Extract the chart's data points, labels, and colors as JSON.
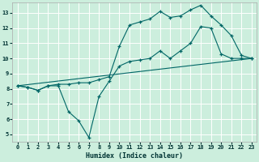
{
  "xlabel": "Humidex (Indice chaleur)",
  "bg_color": "#cceedd",
  "grid_color": "#ffffff",
  "line_color": "#006666",
  "xlim": [
    -0.5,
    23.5
  ],
  "ylim": [
    4.5,
    13.7
  ],
  "xticks": [
    0,
    1,
    2,
    3,
    4,
    5,
    6,
    7,
    8,
    9,
    10,
    11,
    12,
    13,
    14,
    15,
    16,
    17,
    18,
    19,
    20,
    21,
    22,
    23
  ],
  "yticks": [
    5,
    6,
    7,
    8,
    9,
    10,
    11,
    12,
    13
  ],
  "line1_x": [
    0,
    1,
    2,
    3,
    4,
    5,
    6,
    7,
    8,
    9,
    10,
    11,
    12,
    13,
    14,
    15,
    16,
    17,
    18,
    19,
    20,
    21,
    22,
    23
  ],
  "line1_y": [
    8.2,
    8.1,
    7.9,
    8.2,
    8.2,
    6.5,
    5.9,
    4.8,
    7.5,
    8.5,
    9.5,
    9.8,
    9.9,
    10.0,
    10.5,
    10.0,
    10.5,
    11.0,
    12.1,
    12.0,
    10.3,
    10.0,
    10.0,
    10.0
  ],
  "line2_x": [
    0,
    1,
    2,
    3,
    4,
    5,
    6,
    7,
    8,
    9,
    10,
    11,
    12,
    13,
    14,
    15,
    16,
    17,
    18,
    19,
    20,
    21,
    22,
    23
  ],
  "line2_y": [
    8.2,
    8.1,
    7.9,
    8.2,
    8.3,
    8.3,
    8.4,
    8.4,
    8.6,
    8.8,
    10.8,
    12.2,
    12.4,
    12.6,
    13.1,
    12.7,
    12.8,
    13.2,
    13.5,
    12.8,
    12.2,
    11.5,
    10.2,
    10.0
  ],
  "line3_x": [
    0,
    23
  ],
  "line3_y": [
    8.2,
    10.0
  ]
}
